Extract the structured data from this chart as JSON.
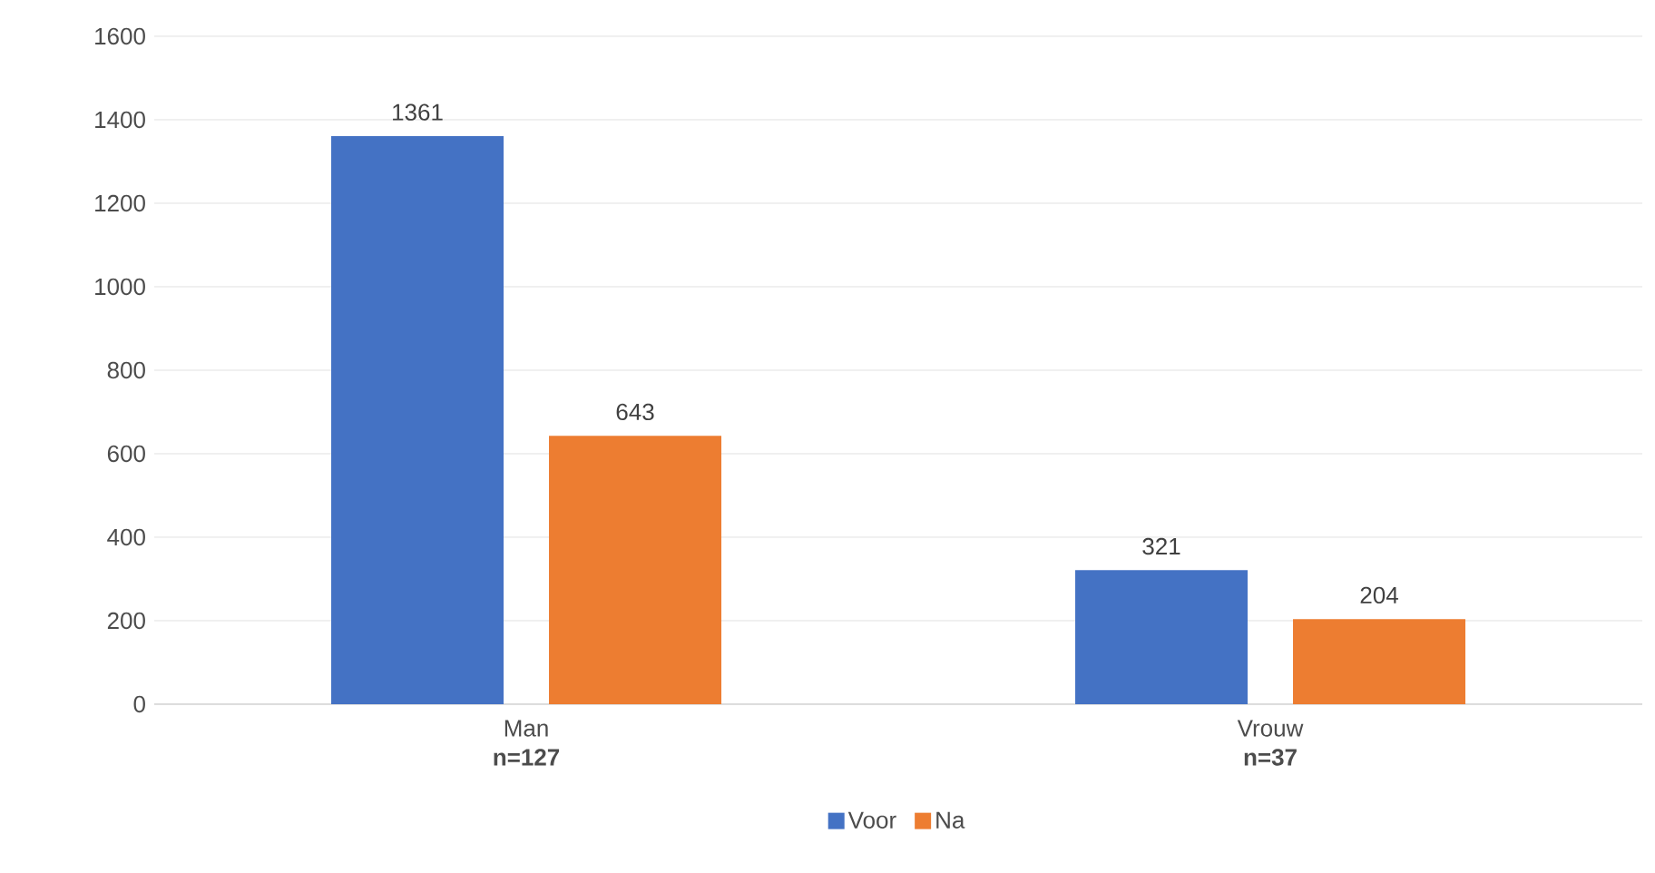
{
  "chart_data": {
    "type": "bar",
    "categories": [
      "Man **n=127**",
      "Vrouw **n=37**"
    ],
    "series": [
      {
        "name": "Voor",
        "color": "#4472c4",
        "values": [
          1361,
          321
        ]
      },
      {
        "name": "Na",
        "color": "#ed7d31",
        "values": [
          643,
          204
        ]
      }
    ],
    "ylim": [
      0,
      1600
    ],
    "yticks": [
      0,
      200,
      400,
      600,
      800,
      1000,
      1200,
      1400,
      1600
    ],
    "grid": "y",
    "legend": "bottom",
    "data_labels": true
  }
}
